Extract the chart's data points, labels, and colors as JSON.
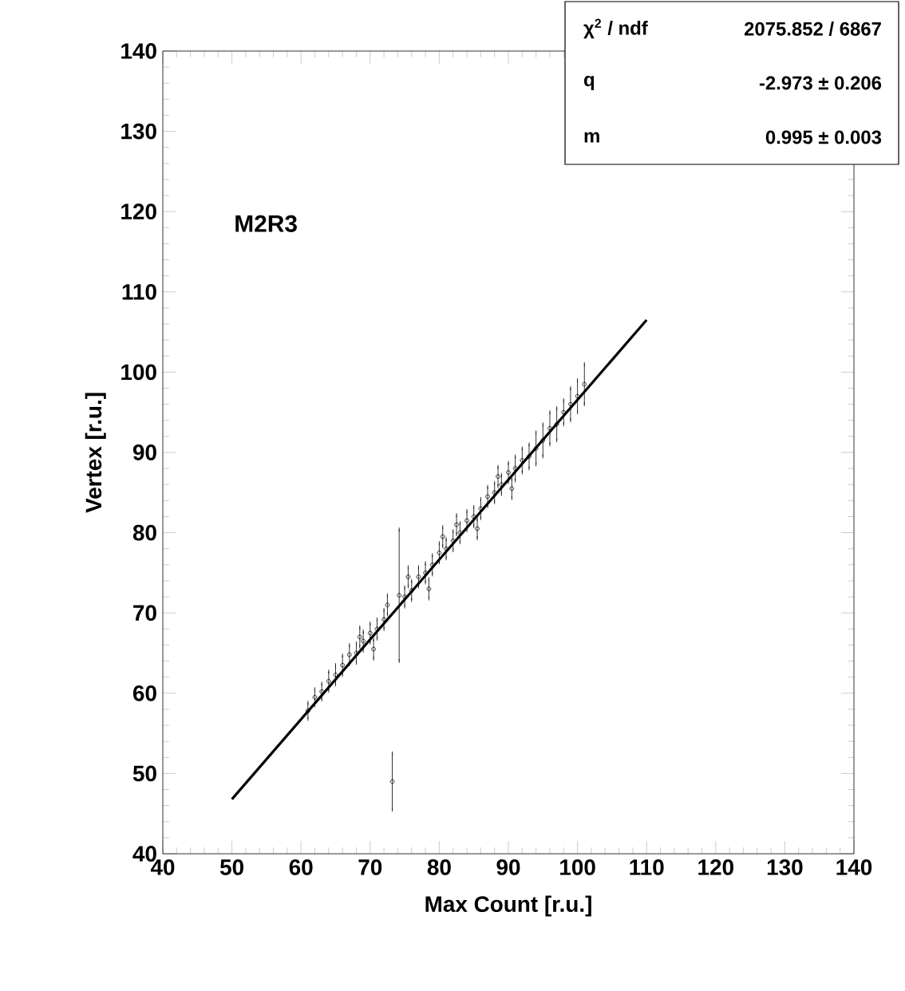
{
  "chart_data": {
    "type": "scatter",
    "xlabel": "Max Count [r.u.]",
    "ylabel": "Vertex [r.u.]",
    "xlim": [
      40,
      140
    ],
    "ylim": [
      40,
      140
    ],
    "xticks": [
      40,
      50,
      60,
      70,
      80,
      90,
      100,
      110,
      120,
      130,
      140
    ],
    "yticks": [
      40,
      50,
      60,
      70,
      80,
      90,
      100,
      110,
      120,
      130,
      140
    ],
    "marker": "circle",
    "grid": false,
    "annotations": [
      "M2R3",
      "χ$^{2}$ / ndf",
      "2075.852 / 6867",
      "q",
      "-2.973 ± 0.206",
      "m",
      "0.995 ± 0.003"
    ],
    "series": [
      {
        "color": "#000000",
        "x": [
          61,
          62,
          63,
          64,
          65,
          66,
          67,
          68,
          69,
          70,
          71,
          72,
          75,
          76,
          77,
          78,
          79,
          80,
          81,
          82,
          83,
          84,
          85,
          86,
          87,
          88,
          89,
          90,
          91,
          92,
          93,
          94,
          95,
          96,
          97,
          98,
          99,
          100,
          101,
          70.5,
          75.5,
          80.5,
          85.5,
          90.5,
          68.5,
          82.5,
          88.5,
          78.5,
          72.5,
          73.2,
          74.2
        ],
        "values": [
          57.8,
          59.5,
          60.2,
          61.5,
          62.3,
          63.5,
          64.8,
          65,
          66.5,
          67.5,
          68,
          69.2,
          72,
          72.8,
          74.5,
          75,
          76,
          77.5,
          78,
          79,
          80,
          81.5,
          82,
          83,
          84.5,
          85,
          86,
          87.5,
          88,
          89,
          89.5,
          90.5,
          91.5,
          93,
          93.5,
          95,
          96,
          97,
          98.5,
          65.5,
          74.5,
          79.5,
          80.5,
          85.5,
          67,
          81,
          87,
          73,
          71,
          49,
          72.2
        ],
        "errors": [
          1,
          1,
          1,
          1.2,
          1.2,
          1.2,
          1.2,
          1.2,
          1.2,
          1.2,
          1.2,
          1.2,
          1.2,
          1.2,
          1.2,
          1.2,
          1.2,
          1.2,
          1.2,
          1.2,
          1.2,
          1.2,
          1.2,
          1.2,
          1.2,
          1.2,
          1.2,
          1.2,
          1.5,
          1.5,
          1.5,
          2,
          2,
          2,
          2,
          1.5,
          2,
          2,
          2.5,
          1.2,
          1.2,
          1.2,
          1.2,
          1.2,
          1.2,
          1.2,
          1.2,
          1.2,
          1.2,
          3.5,
          8.2
        ]
      },
      {
        "type": "line",
        "marker": "none",
        "color": "#000000",
        "x": [
          50,
          110
        ],
        "values": [
          46.8,
          106.5
        ]
      }
    ]
  }
}
